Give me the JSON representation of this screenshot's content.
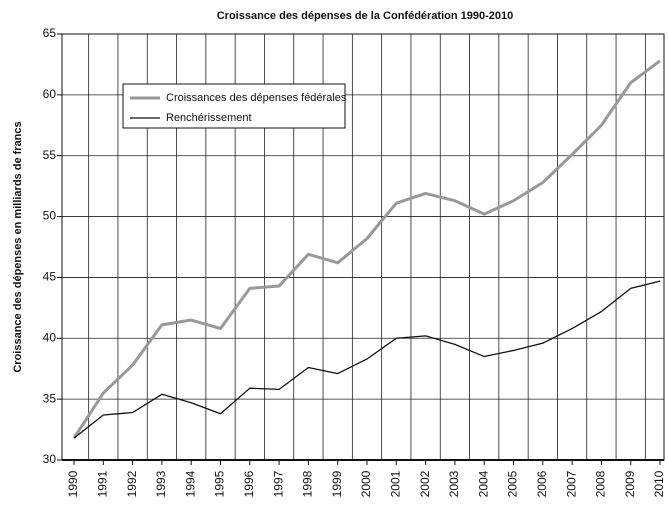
{
  "chart_data": {
    "type": "line",
    "title": "Croissance des dépenses de la Confédération 1990-2010",
    "y_label": "Croissance des dépenses en milliards de francs",
    "categories": [
      "1990",
      "1991",
      "1992",
      "1993",
      "1994",
      "1995",
      "1996",
      "1997",
      "1998",
      "1999",
      "2000",
      "2001",
      "2002",
      "2003",
      "2004",
      "2005",
      "2006",
      "2007",
      "2008",
      "2009",
      "2010"
    ],
    "series": [
      {
        "name": "Croissances des dépenses fédérales",
        "color": "#999999",
        "width": 3,
        "values": [
          31.8,
          35.5,
          37.8,
          41.1,
          41.5,
          40.8,
          44.1,
          44.3,
          46.9,
          46.2,
          48.2,
          51.1,
          51.9,
          51.3,
          50.2,
          51.3,
          52.8,
          55.1,
          57.5,
          61.0,
          62.8
        ]
      },
      {
        "name": "Renchérissement",
        "color": "#111111",
        "width": 1.3,
        "values": [
          31.8,
          33.7,
          33.9,
          35.4,
          34.7,
          33.8,
          35.9,
          35.8,
          37.6,
          37.1,
          38.3,
          40.0,
          40.2,
          39.5,
          38.5,
          39.0,
          39.6,
          40.8,
          42.2,
          44.1,
          44.7
        ]
      }
    ],
    "ylim": [
      30,
      65
    ],
    "yticks": [
      30,
      35,
      40,
      45,
      50,
      55,
      60,
      65
    ],
    "grid": true
  }
}
